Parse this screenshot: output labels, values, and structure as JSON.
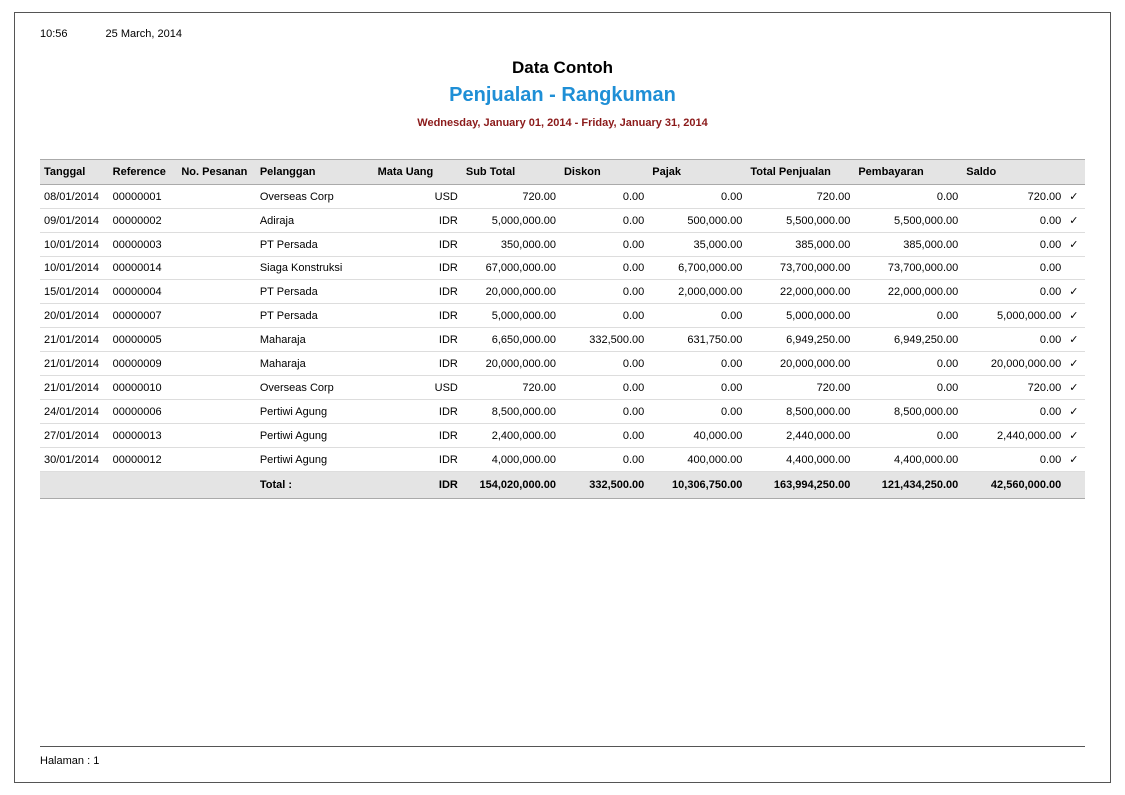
{
  "header": {
    "time": "10:56",
    "date": "25 March, 2014"
  },
  "titles": {
    "company": "Data Contoh",
    "report": "Penjualan - Rangkuman",
    "date_range": "Wednesday, January 01, 2014 - Friday, January 31, 2014"
  },
  "columns": {
    "tanggal": "Tanggal",
    "reference": "Reference",
    "pesanan": "No. Pesanan",
    "pelanggan": "Pelanggan",
    "mata_uang": "Mata Uang",
    "sub_total": "Sub Total",
    "diskon": "Diskon",
    "pajak": "Pajak",
    "total_penjualan": "Total Penjualan",
    "pembayaran": "Pembayaran",
    "saldo": "Saldo"
  },
  "rows": [
    {
      "tanggal": "08/01/2014",
      "reference": "00000001",
      "pesanan": "",
      "pelanggan": "Overseas Corp",
      "mata_uang": "USD",
      "sub_total": "720.00",
      "diskon": "0.00",
      "pajak": "0.00",
      "total_penjualan": "720.00",
      "pembayaran": "0.00",
      "saldo": "720.00",
      "check": "✓"
    },
    {
      "tanggal": "09/01/2014",
      "reference": "00000002",
      "pesanan": "",
      "pelanggan": "Adiraja",
      "mata_uang": "IDR",
      "sub_total": "5,000,000.00",
      "diskon": "0.00",
      "pajak": "500,000.00",
      "total_penjualan": "5,500,000.00",
      "pembayaran": "5,500,000.00",
      "saldo": "0.00",
      "check": "✓"
    },
    {
      "tanggal": "10/01/2014",
      "reference": "00000003",
      "pesanan": "",
      "pelanggan": "PT Persada",
      "mata_uang": "IDR",
      "sub_total": "350,000.00",
      "diskon": "0.00",
      "pajak": "35,000.00",
      "total_penjualan": "385,000.00",
      "pembayaran": "385,000.00",
      "saldo": "0.00",
      "check": "✓"
    },
    {
      "tanggal": "10/01/2014",
      "reference": "00000014",
      "pesanan": "",
      "pelanggan": "Siaga Konstruksi",
      "mata_uang": "IDR",
      "sub_total": "67,000,000.00",
      "diskon": "0.00",
      "pajak": "6,700,000.00",
      "total_penjualan": "73,700,000.00",
      "pembayaran": "73,700,000.00",
      "saldo": "0.00",
      "check": ""
    },
    {
      "tanggal": "15/01/2014",
      "reference": "00000004",
      "pesanan": "",
      "pelanggan": "PT Persada",
      "mata_uang": "IDR",
      "sub_total": "20,000,000.00",
      "diskon": "0.00",
      "pajak": "2,000,000.00",
      "total_penjualan": "22,000,000.00",
      "pembayaran": "22,000,000.00",
      "saldo": "0.00",
      "check": "✓"
    },
    {
      "tanggal": "20/01/2014",
      "reference": "00000007",
      "pesanan": "",
      "pelanggan": "PT Persada",
      "mata_uang": "IDR",
      "sub_total": "5,000,000.00",
      "diskon": "0.00",
      "pajak": "0.00",
      "total_penjualan": "5,000,000.00",
      "pembayaran": "0.00",
      "saldo": "5,000,000.00",
      "check": "✓"
    },
    {
      "tanggal": "21/01/2014",
      "reference": "00000005",
      "pesanan": "",
      "pelanggan": "Maharaja",
      "mata_uang": "IDR",
      "sub_total": "6,650,000.00",
      "diskon": "332,500.00",
      "pajak": "631,750.00",
      "total_penjualan": "6,949,250.00",
      "pembayaran": "6,949,250.00",
      "saldo": "0.00",
      "check": "✓"
    },
    {
      "tanggal": "21/01/2014",
      "reference": "00000009",
      "pesanan": "",
      "pelanggan": "Maharaja",
      "mata_uang": "IDR",
      "sub_total": "20,000,000.00",
      "diskon": "0.00",
      "pajak": "0.00",
      "total_penjualan": "20,000,000.00",
      "pembayaran": "0.00",
      "saldo": "20,000,000.00",
      "check": "✓"
    },
    {
      "tanggal": "21/01/2014",
      "reference": "00000010",
      "pesanan": "",
      "pelanggan": "Overseas Corp",
      "mata_uang": "USD",
      "sub_total": "720.00",
      "diskon": "0.00",
      "pajak": "0.00",
      "total_penjualan": "720.00",
      "pembayaran": "0.00",
      "saldo": "720.00",
      "check": "✓"
    },
    {
      "tanggal": "24/01/2014",
      "reference": "00000006",
      "pesanan": "",
      "pelanggan": "Pertiwi Agung",
      "mata_uang": "IDR",
      "sub_total": "8,500,000.00",
      "diskon": "0.00",
      "pajak": "0.00",
      "total_penjualan": "8,500,000.00",
      "pembayaran": "8,500,000.00",
      "saldo": "0.00",
      "check": "✓"
    },
    {
      "tanggal": "27/01/2014",
      "reference": "00000013",
      "pesanan": "",
      "pelanggan": "Pertiwi Agung",
      "mata_uang": "IDR",
      "sub_total": "2,400,000.00",
      "diskon": "0.00",
      "pajak": "40,000.00",
      "total_penjualan": "2,440,000.00",
      "pembayaran": "0.00",
      "saldo": "2,440,000.00",
      "check": "✓"
    },
    {
      "tanggal": "30/01/2014",
      "reference": "00000012",
      "pesanan": "",
      "pelanggan": "Pertiwi Agung",
      "mata_uang": "IDR",
      "sub_total": "4,000,000.00",
      "diskon": "0.00",
      "pajak": "400,000.00",
      "total_penjualan": "4,400,000.00",
      "pembayaran": "4,400,000.00",
      "saldo": "0.00",
      "check": "✓"
    }
  ],
  "totals": {
    "label": "Total :",
    "mata_uang": "IDR",
    "sub_total": "154,020,000.00",
    "diskon": "332,500.00",
    "pajak": "10,306,750.00",
    "total_penjualan": "163,994,250.00",
    "pembayaran": "121,434,250.00",
    "saldo": "42,560,000.00"
  },
  "footer": {
    "page_label": "Halaman : 1"
  }
}
